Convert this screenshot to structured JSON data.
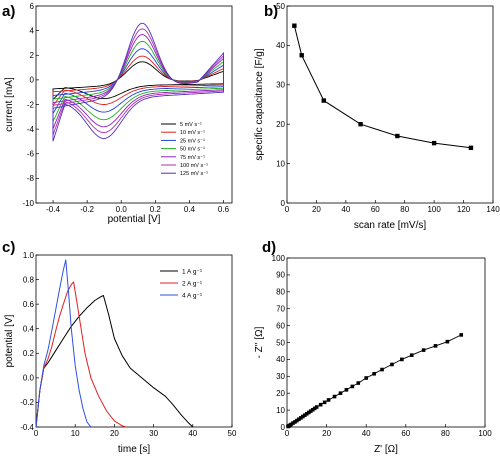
{
  "chart_data": [
    {
      "panel": "a)",
      "type": "line",
      "xlabel": "potential [V]",
      "ylabel": "current [mA]",
      "xlim": [
        -0.5,
        0.65
      ],
      "ylim": [
        -10,
        6
      ],
      "xticks": [
        -0.4,
        -0.2,
        0.0,
        0.2,
        0.4,
        0.6
      ],
      "xtick_labels": [
        "-0.4",
        "-0.2",
        "0.0",
        "0.2",
        "0.4",
        "0.6"
      ],
      "yticks": [
        -10,
        -8,
        -6,
        -4,
        -2,
        0,
        2,
        4,
        6
      ],
      "ytick_labels": [
        "-10",
        "-8",
        "-6",
        "-4",
        "-2",
        "0",
        "2",
        "4",
        "6"
      ],
      "legend_position": "center-right",
      "series": [
        {
          "name": "5 mV s⁻¹",
          "color": "#000000",
          "scale": 0.32
        },
        {
          "name": "10 mV s⁻¹",
          "color": "#e02020",
          "scale": 0.42
        },
        {
          "name": "25 mV s⁻¹",
          "color": "#2040e0",
          "scale": 0.55
        },
        {
          "name": "50 mV s⁻¹",
          "color": "#20b020",
          "scale": 0.68
        },
        {
          "name": "75 mV s⁻¹",
          "color": "#9020c0",
          "scale": 0.8
        },
        {
          "name": "100 mV s⁻¹",
          "color": "#b030b0",
          "scale": 0.9
        },
        {
          "name": "125 mV s⁻¹",
          "color": "#5030c0",
          "scale": 1.0
        }
      ]
    },
    {
      "panel": "b)",
      "type": "line",
      "xlabel": "scan rate [mV/s]",
      "ylabel": "specific capacitance [F/g]",
      "xlim": [
        0,
        140
      ],
      "ylim": [
        0,
        50
      ],
      "xticks": [
        0,
        20,
        40,
        60,
        80,
        100,
        120,
        140
      ],
      "xtick_labels": [
        "0",
        "20",
        "40",
        "60",
        "80",
        "100",
        "120",
        "140"
      ],
      "yticks": [
        0,
        10,
        20,
        30,
        40,
        50
      ],
      "ytick_labels": [
        "0",
        "10",
        "20",
        "30",
        "40",
        "50"
      ],
      "series": [
        {
          "x": [
            5,
            10,
            25,
            50,
            75,
            100,
            125
          ],
          "y": [
            45,
            37.5,
            26,
            20,
            17,
            15.2,
            14
          ],
          "color": "#000000"
        }
      ]
    },
    {
      "panel": "c)",
      "type": "line",
      "xlabel": "time [s]",
      "ylabel": "potential [V]",
      "xlim": [
        0,
        50
      ],
      "ylim": [
        -0.4,
        1.0
      ],
      "xticks": [
        0,
        10,
        20,
        30,
        40,
        50
      ],
      "xtick_labels": [
        "0",
        "10",
        "20",
        "30",
        "40",
        "50"
      ],
      "yticks": [
        -0.4,
        -0.2,
        0.0,
        0.2,
        0.4,
        0.6,
        0.8,
        1.0
      ],
      "ytick_labels": [
        "-0.4",
        "-0.2",
        "0.0",
        "0.2",
        "0.4",
        "0.6",
        "0.8",
        "1.0"
      ],
      "legend_position": "top-right",
      "series": [
        {
          "name": "1 A g⁻¹",
          "color": "#000000",
          "x": [
            0,
            1,
            2,
            3,
            5,
            7,
            9,
            11,
            13,
            15,
            16.5,
            17.2,
            18.5,
            20,
            22,
            24,
            27,
            30,
            33,
            35,
            37,
            39,
            40
          ],
          "y": [
            -0.4,
            -0.1,
            0.08,
            0.12,
            0.22,
            0.32,
            0.42,
            0.5,
            0.57,
            0.63,
            0.66,
            0.67,
            0.52,
            0.32,
            0.18,
            0.08,
            0.0,
            -0.08,
            -0.15,
            -0.22,
            -0.3,
            -0.37,
            -0.4
          ]
        },
        {
          "name": "2 A g⁻¹",
          "color": "#e02020",
          "x": [
            0,
            1,
            2,
            3,
            4,
            5,
            6,
            7,
            8,
            9,
            9.6,
            10.5,
            11.5,
            12.5,
            14,
            16,
            18,
            20,
            22,
            23
          ],
          "y": [
            -0.4,
            -0.1,
            0.08,
            0.15,
            0.25,
            0.38,
            0.5,
            0.6,
            0.7,
            0.76,
            0.78,
            0.6,
            0.4,
            0.2,
            0.0,
            -0.15,
            -0.27,
            -0.35,
            -0.39,
            -0.4
          ]
        },
        {
          "name": "4 A g⁻¹",
          "color": "#3050e0",
          "x": [
            0,
            1,
            2,
            3,
            4,
            5,
            6,
            7,
            7.6,
            8.3,
            9,
            10,
            11,
            12,
            13,
            14
          ],
          "y": [
            -0.4,
            -0.1,
            0.1,
            0.22,
            0.38,
            0.55,
            0.72,
            0.88,
            0.96,
            0.7,
            0.4,
            0.1,
            -0.1,
            -0.25,
            -0.36,
            -0.4
          ]
        }
      ]
    },
    {
      "panel": "d)",
      "type": "scatter",
      "xlabel": "Z' [Ω]",
      "ylabel": "- Z'' [Ω]",
      "xlim": [
        0,
        100
      ],
      "ylim": [
        0,
        100
      ],
      "xticks": [
        0,
        20,
        40,
        60,
        80,
        100
      ],
      "xtick_labels": [
        "0",
        "20",
        "40",
        "60",
        "80",
        "100"
      ],
      "yticks": [
        0,
        10,
        20,
        30,
        40,
        50,
        60,
        70,
        80,
        90,
        100
      ],
      "ytick_labels": [
        "0",
        "10",
        "20",
        "30",
        "40",
        "50",
        "60",
        "70",
        "80",
        "90",
        "100"
      ],
      "series": [
        {
          "color": "#000000",
          "x": [
            0.5,
            1,
            1.5,
            2,
            3,
            4,
            5,
            6,
            7,
            8,
            9,
            10,
            11,
            12,
            13,
            14,
            15,
            17,
            19,
            21,
            24,
            27,
            30,
            33,
            36,
            40,
            44,
            48,
            53,
            58,
            63,
            69,
            75,
            81,
            88
          ],
          "y": [
            0.3,
            0.6,
            1,
            1.5,
            2.3,
            3,
            3.8,
            4.6,
            5.4,
            6.2,
            7,
            7.8,
            8.6,
            9.4,
            10.2,
            11,
            11.8,
            13.2,
            14.6,
            16,
            18,
            20,
            22,
            24,
            26,
            29,
            31.5,
            34,
            37,
            40,
            42.5,
            45.5,
            48,
            50.5,
            54.5
          ]
        }
      ]
    }
  ]
}
